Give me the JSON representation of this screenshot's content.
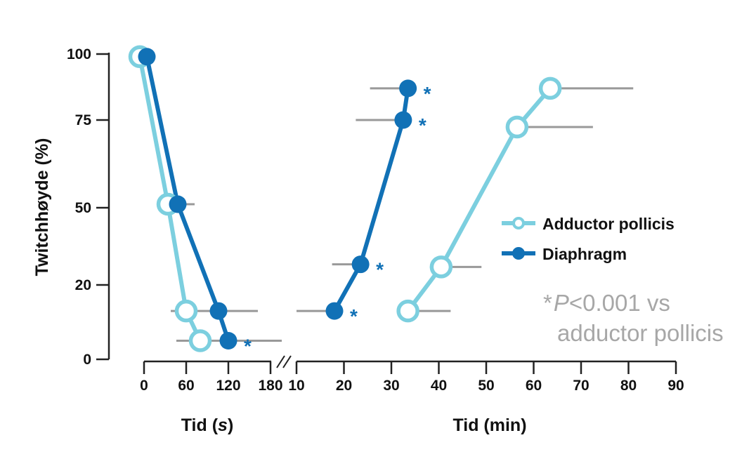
{
  "chart_data": {
    "type": "line",
    "ylabel": "Twitchhøyde (%)",
    "yticks": [
      0,
      20,
      50,
      75,
      100
    ],
    "ytick_labels": [
      "0",
      "20",
      "50",
      "75",
      "100"
    ],
    "panels": [
      {
        "name": "seconds",
        "xlabel_prefix": "Tid (",
        "xlabel_unit": "s",
        "xlabel_suffix": ")",
        "xticks": [
          0,
          60,
          120,
          180
        ],
        "xtick_labels": [
          "0",
          "60",
          "120",
          "180"
        ],
        "xlim": [
          0,
          180
        ]
      },
      {
        "name": "minutes",
        "xlabel": "Tid (min)",
        "xticks": [
          10,
          20,
          30,
          40,
          50,
          60,
          70,
          80,
          90
        ],
        "xtick_labels": [
          "10",
          "20",
          "30",
          "40",
          "50",
          "60",
          "70",
          "80",
          "90"
        ],
        "xlim": [
          10,
          90
        ]
      }
    ],
    "series": [
      {
        "name": "Adductor pollicis",
        "color": "#7ccfdf",
        "marker": "open-circle",
        "points": [
          {
            "panel": 0,
            "x": -6,
            "y": 99
          },
          {
            "panel": 0,
            "x": 34,
            "y": 51
          },
          {
            "panel": 0,
            "x": 60,
            "y": 13
          },
          {
            "panel": 0,
            "x": 80,
            "y": 5,
            "err": [
              46,
              156
            ]
          }
        ],
        "recovery": [
          {
            "panel": 1,
            "x": 33.5,
            "y": 13,
            "err": [
              33.5,
              42.5
            ]
          },
          {
            "panel": 1,
            "x": 40.5,
            "y": 27,
            "err": [
              40.5,
              49
            ]
          },
          {
            "panel": 1,
            "x": 56.5,
            "y": 73,
            "err": [
              56.5,
              72.5
            ]
          },
          {
            "panel": 1,
            "x": 63.5,
            "y": 87,
            "err": [
              63.5,
              81
            ]
          }
        ]
      },
      {
        "name": "Diaphragm",
        "color": "#1171b6",
        "marker": "filled-circle",
        "points": [
          {
            "panel": 0,
            "x": 4,
            "y": 99
          },
          {
            "panel": 0,
            "x": 48,
            "y": 51,
            "err": [
              48,
              72
            ]
          },
          {
            "panel": 0,
            "x": 106,
            "y": 13,
            "err": [
              38,
              162
            ]
          },
          {
            "panel": 0,
            "x": 120,
            "y": 5,
            "err": [
              120,
              196
            ],
            "sig": true
          }
        ],
        "recovery": [
          {
            "panel": 1,
            "x": 18,
            "y": 13,
            "err": [
              10,
              18
            ],
            "sig": true
          },
          {
            "panel": 1,
            "x": 23.5,
            "y": 28,
            "err": [
              17.5,
              23.5
            ],
            "sig": true
          },
          {
            "panel": 1,
            "x": 32.5,
            "y": 75,
            "err": [
              22.5,
              32.5
            ],
            "sig": true
          },
          {
            "panel": 1,
            "x": 33.5,
            "y": 87,
            "err": [
              25.5,
              33.5
            ],
            "sig": true
          }
        ]
      }
    ],
    "significance_marker": "*",
    "note": {
      "star": "*",
      "p": "P",
      "rest": "<0.001 vs",
      "line2": "adductor pollicis"
    },
    "error_bar_color": "#999999"
  }
}
